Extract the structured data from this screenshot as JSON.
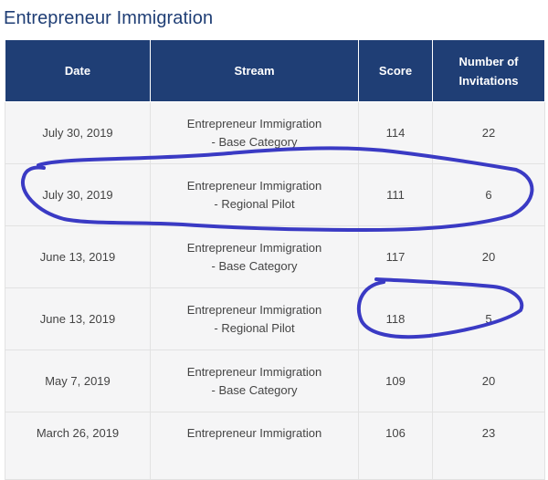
{
  "page": {
    "title": "Entrepreneur Immigration"
  },
  "table": {
    "headers": {
      "date": "Date",
      "stream": "Stream",
      "score": "Score",
      "invitations_line1": "Number of",
      "invitations_line2": "Invitations"
    },
    "rows": [
      {
        "date": "July 30, 2019",
        "stream_line1": "Entrepreneur Immigration",
        "stream_line2": "- Base Category",
        "score": "114",
        "invitations": "22"
      },
      {
        "date": "July 30, 2019",
        "stream_line1": "Entrepreneur Immigration",
        "stream_line2": "- Regional Pilot",
        "score": "111",
        "invitations": "6"
      },
      {
        "date": "June 13, 2019",
        "stream_line1": "Entrepreneur Immigration",
        "stream_line2": "- Base Category",
        "score": "117",
        "invitations": "20"
      },
      {
        "date": "June 13, 2019",
        "stream_line1": "Entrepreneur Immigration",
        "stream_line2": "- Regional Pilot",
        "score": "118",
        "invitations": "5"
      },
      {
        "date": "May 7, 2019",
        "stream_line1": "Entrepreneur Immigration",
        "stream_line2": "- Base Category",
        "score": "109",
        "invitations": "20"
      },
      {
        "date": "March 26, 2019",
        "stream_line1": "Entrepreneur Immigration",
        "stream_line2": "",
        "score": "106",
        "invitations": "23"
      }
    ]
  },
  "annotation": {
    "color": "#3a3ac4"
  }
}
